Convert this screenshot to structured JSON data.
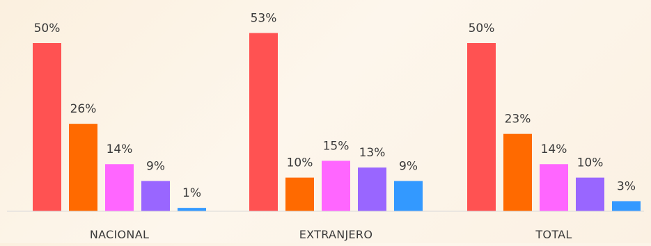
{
  "chart_data": {
    "type": "bar",
    "categories": [
      "NACIONAL",
      "EXTRANJERO",
      "TOTAL"
    ],
    "series": [
      {
        "values": [
          50,
          53,
          50
        ],
        "labels": [
          "50%",
          "53%",
          "50%"
        ],
        "color": "#ff5252"
      },
      {
        "values": [
          26,
          10,
          23
        ],
        "labels": [
          "26%",
          "10%",
          "23%"
        ],
        "color": "#ff6a00"
      },
      {
        "values": [
          14,
          15,
          14
        ],
        "labels": [
          "14%",
          "15%",
          "14%"
        ],
        "color": "#ff66ff"
      },
      {
        "values": [
          9,
          13,
          10
        ],
        "labels": [
          "9%",
          "13%",
          "10%"
        ],
        "color": "#9966ff"
      },
      {
        "values": [
          1,
          9,
          3
        ],
        "labels": [
          "1%",
          "9%",
          "3%"
        ],
        "color": "#3399ff"
      }
    ],
    "title": "",
    "xlabel": "",
    "ylabel": "",
    "ylim": [
      0,
      55
    ],
    "grid": false,
    "legend": "none",
    "axis_color": "#d9d9d9"
  }
}
